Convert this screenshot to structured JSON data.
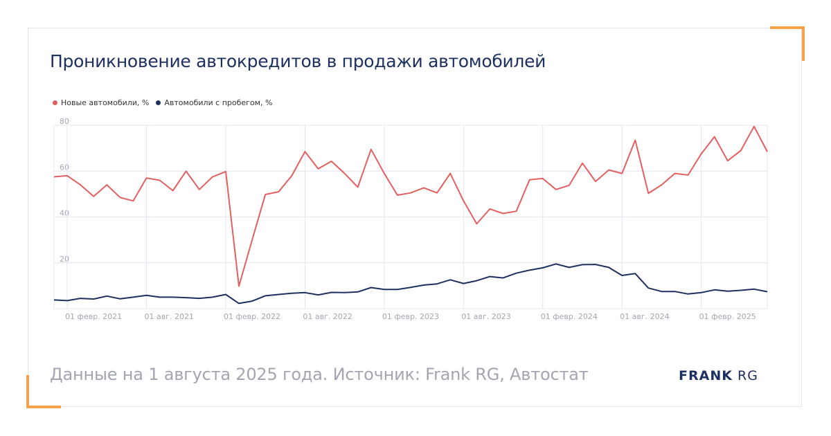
{
  "header": {
    "title": "Проникновение автокредитов в продажи автомобилей"
  },
  "footer": {
    "source": "Данные на 1 августа 2025 года. Источник: Frank RG, Автостат"
  },
  "logo": {
    "brand": "FRANK",
    "suffix": "RG"
  },
  "colors": {
    "accent": "#f7a24a",
    "new_series": "#e35f5f",
    "used_series": "#1c2f5e",
    "grid": "#e4e4f2"
  },
  "chart_data": {
    "type": "line",
    "title": "Проникновение автокредитов в продажи автомобилей",
    "xlabel": "",
    "ylabel": "",
    "ylim": [
      0,
      80
    ],
    "yticks": [
      20,
      40,
      60,
      80
    ],
    "grid": true,
    "legend_position": "top-left",
    "x": [
      "2021-01",
      "2021-02",
      "2021-03",
      "2021-04",
      "2021-05",
      "2021-06",
      "2021-07",
      "2021-08",
      "2021-09",
      "2021-10",
      "2021-11",
      "2021-12",
      "2022-01",
      "2022-02",
      "2022-03",
      "2022-04",
      "2022-05",
      "2022-06",
      "2022-07",
      "2022-08",
      "2022-09",
      "2022-10",
      "2022-11",
      "2022-12",
      "2023-01",
      "2023-02",
      "2023-03",
      "2023-04",
      "2023-05",
      "2023-06",
      "2023-07",
      "2023-08",
      "2023-09",
      "2023-10",
      "2023-11",
      "2023-12",
      "2024-01",
      "2024-02",
      "2024-03",
      "2024-04",
      "2024-05",
      "2024-06",
      "2024-07",
      "2024-08",
      "2024-09",
      "2024-10",
      "2024-11",
      "2024-12",
      "2025-01",
      "2025-02",
      "2025-03",
      "2025-04",
      "2025-05",
      "2025-06",
      "2025-07"
    ],
    "x_tick_labels": [
      "01 февр. 2021",
      "01 авг. 2021",
      "01 февр. 2022",
      "01 авг. 2022",
      "01 февр. 2023",
      "01 авг. 2023",
      "01 февр. 2024",
      "01 авг. 2024",
      "01 февр. 2025"
    ],
    "x_tick_index": [
      1,
      7,
      13,
      19,
      25,
      31,
      37,
      43,
      49
    ],
    "series": [
      {
        "name": "Новые автомобили, %",
        "color": "#e35f5f",
        "values": [
          57.5,
          58,
          54,
          49,
          54,
          48.5,
          47,
          57,
          56,
          51.5,
          60,
          52,
          57.5,
          59.8,
          9.8,
          30,
          49.8,
          51,
          58,
          68.5,
          61,
          64.3,
          59,
          53,
          69.5,
          59,
          49.5,
          50.5,
          52.7,
          50.5,
          59,
          47,
          37,
          43.5,
          41.5,
          42.5,
          56.2,
          56.8,
          52,
          53.8,
          63.5,
          55.5,
          60.5,
          59,
          73.5,
          50.3,
          54,
          59,
          58.3,
          67.5,
          75,
          64.5,
          69,
          79.5,
          68.5
        ]
      },
      {
        "name": "Автомобили с пробегом, %",
        "color": "#1c2f5e",
        "values": [
          3.8,
          3.5,
          4.5,
          4.2,
          5.5,
          4.3,
          5,
          5.8,
          5,
          5,
          4.8,
          4.5,
          5,
          6.2,
          2.3,
          3.3,
          5.6,
          6.2,
          6.7,
          7,
          6,
          7.1,
          7,
          7.3,
          9.2,
          8.4,
          8.4,
          9.3,
          10.3,
          10.8,
          12.6,
          11,
          12.2,
          14,
          13.4,
          15.5,
          16.8,
          17.8,
          19.5,
          18,
          19.2,
          19.3,
          18,
          14.5,
          15.3,
          9,
          7.5,
          7.5,
          6.4,
          7,
          8.2,
          7.6,
          8,
          8.5,
          7.4
        ]
      }
    ]
  }
}
